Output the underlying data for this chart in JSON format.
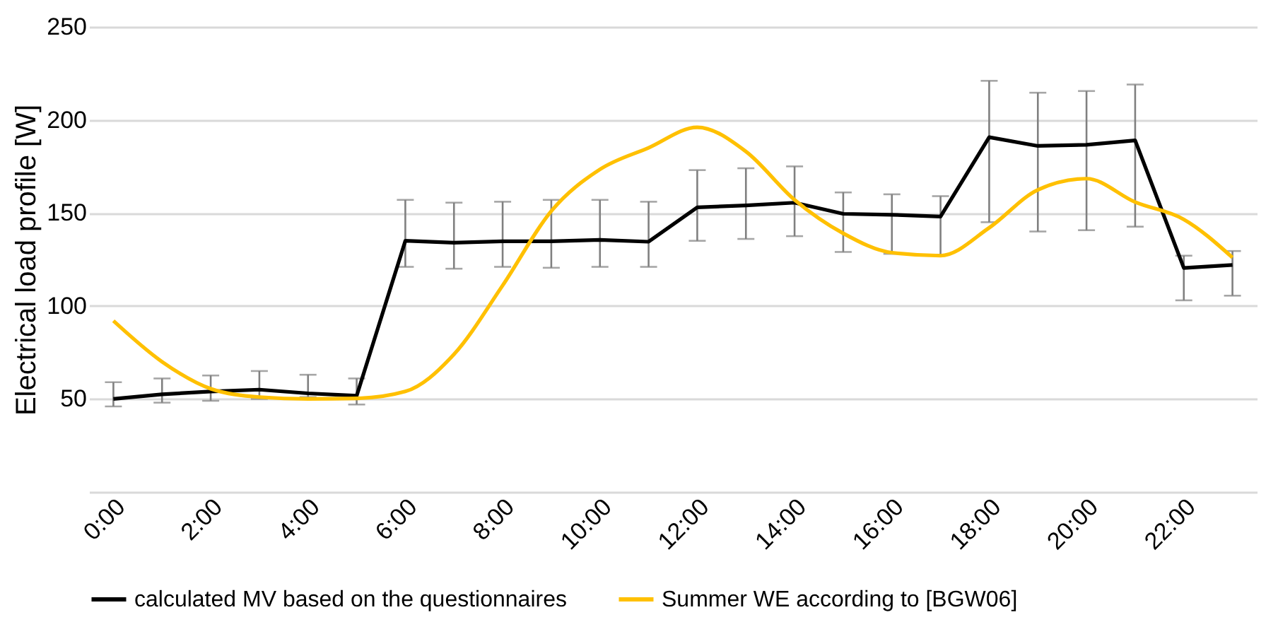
{
  "chart_data": {
    "type": "line",
    "ylabel": "Electrical load profile [W]",
    "categories": [
      "0:00",
      null,
      "2:00",
      null,
      "4:00",
      null,
      "6:00",
      null,
      "8:00",
      null,
      "10:00",
      null,
      "12:00",
      null,
      "14:00",
      null,
      "16:00",
      null,
      "18:00",
      null,
      "20:00",
      null,
      "22:00",
      null
    ],
    "series": [
      {
        "name": "calculated MV based on the questionnaires",
        "color": "#000000",
        "values": [
          50,
          52.5,
          54,
          55,
          53,
          51.7,
          135,
          134,
          134.7,
          134.7,
          135.5,
          134.5,
          153,
          154,
          155.5,
          149.5,
          149,
          148,
          190.7,
          186,
          186.6,
          189,
          120.4,
          122
        ],
        "errors": [
          [
            46,
            59
          ],
          [
            48,
            61
          ],
          [
            49,
            62.6
          ],
          [
            50,
            65
          ],
          [
            51,
            63
          ],
          [
            47,
            61
          ],
          [
            121,
            157
          ],
          [
            120,
            155.5
          ],
          [
            121,
            156
          ],
          [
            120.5,
            157
          ],
          [
            121,
            157
          ],
          [
            121,
            156
          ],
          [
            135,
            173
          ],
          [
            136,
            174
          ],
          [
            137.5,
            175
          ],
          [
            129,
            161
          ],
          [
            128,
            160
          ],
          [
            127.5,
            159
          ],
          [
            145,
            221
          ],
          [
            140,
            214.6
          ],
          [
            140.7,
            215.5
          ],
          [
            142.6,
            219
          ],
          [
            103,
            127
          ],
          [
            105.5,
            129.5
          ]
        ]
      },
      {
        "name": "Summer WE according to [BGW06]",
        "color": "#ffc000",
        "values": [
          92,
          70,
          55.5,
          51,
          50,
          50.3,
          54,
          74,
          111,
          151,
          173.4,
          185,
          196,
          183,
          157,
          139,
          128.6,
          127,
          142,
          162.4,
          168.4,
          155.8,
          146.5,
          126
        ],
        "line_style": "solid"
      }
    ],
    "ylim": [
      0,
      250
    ],
    "yticks": [
      {
        "value": 0,
        "label": null
      },
      50,
      100,
      150,
      200,
      250
    ],
    "grid": "y",
    "legend": "bottom",
    "marker": "none",
    "line_style": "solid"
  }
}
